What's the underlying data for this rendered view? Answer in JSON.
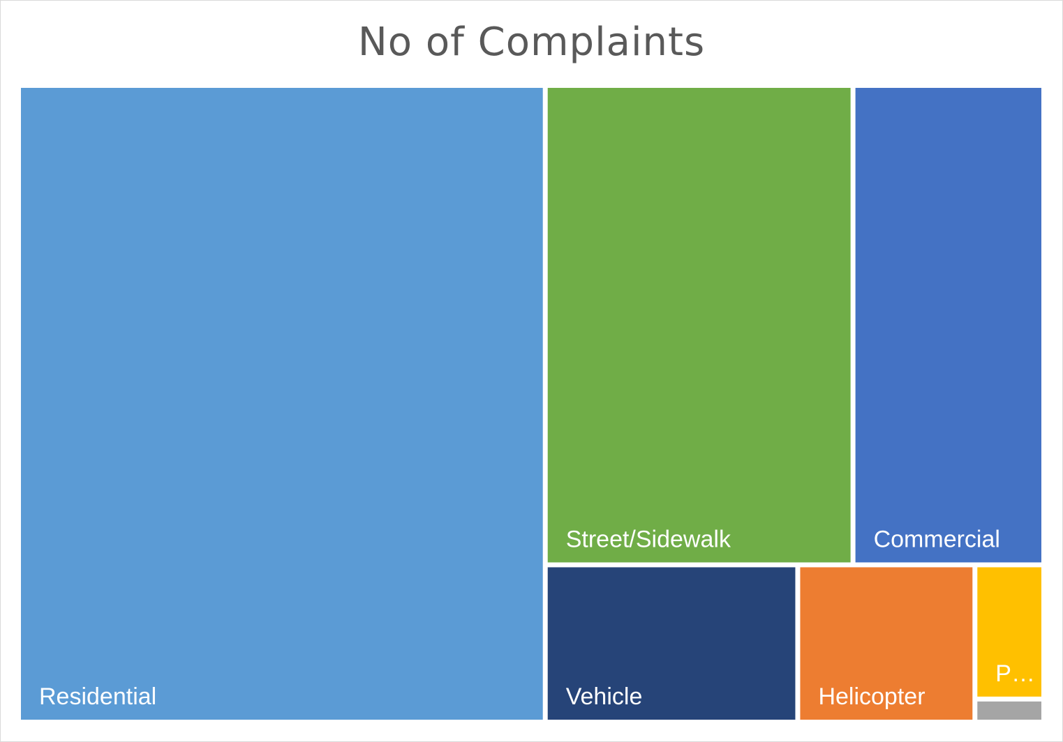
{
  "chart_data": {
    "type": "treemap",
    "title": "No of Complaints",
    "items": [
      {
        "label": "Residential",
        "value": 48.3,
        "color": "#5b9bd5"
      },
      {
        "label": "Street/Sidewalk",
        "value": 21.4,
        "color": "#70ad47"
      },
      {
        "label": "Commercial",
        "value": 13.1,
        "color": "#4472c4"
      },
      {
        "label": "Vehicle",
        "value": 5.7,
        "color": "#264478"
      },
      {
        "label": "Helicopter",
        "value": 4.0,
        "color": "#ed7d31"
      },
      {
        "label": "P…",
        "value": 1.3,
        "color": "#ffc000"
      },
      {
        "label": "",
        "value": 0.2,
        "color": "#a5a5a5"
      }
    ]
  }
}
